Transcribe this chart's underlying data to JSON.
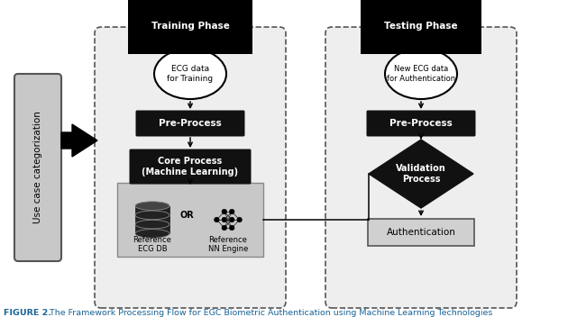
{
  "title_bold": "FIGURE 2.",
  "title_rest": " The Framework Processing Flow for EGC Biometric Authentication using Machine Learning Technologies",
  "title_color": "#1a6496",
  "bg_color": "#ffffff",
  "training_phase_label": "Training Phase",
  "testing_phase_label": "Testing Phase",
  "use_case_label": "Use case categorization",
  "ecg_train_label": "ECG data\nfor Training",
  "preprocess_train_label": "Pre-Process",
  "core_process_label": "Core Process\n(Machine Learning)",
  "ref_ecg_label": "Reference\nECG DB",
  "ref_nn_label": "Reference\nNN Engine",
  "or_label": "OR",
  "ecg_test_label": "New ECG data\nfor Authentication",
  "preprocess_test_label": "Pre-Process",
  "validation_label": "Validation\nProcess",
  "auth_label": "Authentication",
  "panel_bg": "#eeeeee",
  "storage_bg": "#c8c8c8",
  "box_black": "#111111",
  "box_gray_bg": "#d0d0d0",
  "box_gray_border": "#555555",
  "use_case_bg": "#c8c8c8",
  "use_case_border": "#555555",
  "dashed_border_color": "#555555",
  "arrow_color": "#111111",
  "training_label_bg": "#111111",
  "testing_label_bg": "#111111"
}
